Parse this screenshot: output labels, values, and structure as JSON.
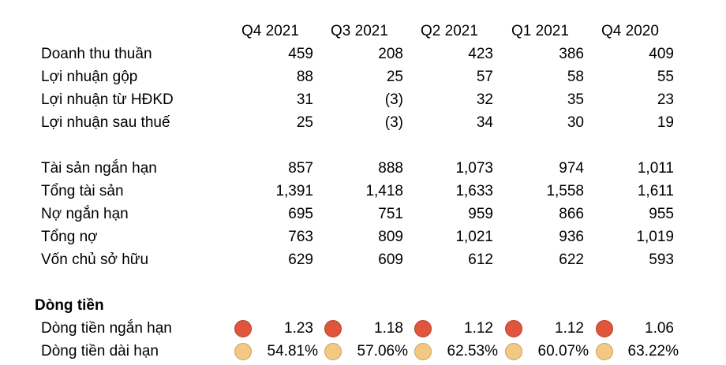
{
  "columns": [
    "Q4 2021",
    "Q3 2021",
    "Q2 2021",
    "Q1 2021",
    "Q4 2020"
  ],
  "income": [
    {
      "label": "Doanh thu thuần",
      "values": [
        "459",
        "208",
        "423",
        "386",
        "409"
      ]
    },
    {
      "label": "Lợi nhuận gộp",
      "values": [
        "88",
        "25",
        "57",
        "58",
        "55"
      ]
    },
    {
      "label": "Lợi nhuận từ HĐKD",
      "values": [
        "31",
        "(3)",
        "32",
        "35",
        "23"
      ]
    },
    {
      "label": "Lợi nhuận sau thuế",
      "values": [
        "25",
        "(3)",
        "34",
        "30",
        "19"
      ]
    }
  ],
  "balance": [
    {
      "label": "Tài sản ngắn hạn",
      "values": [
        "857",
        "888",
        "1,073",
        "974",
        "1,011"
      ]
    },
    {
      "label": "Tổng tài sản",
      "values": [
        "1,391",
        "1,418",
        "1,633",
        "1,558",
        "1,611"
      ]
    },
    {
      "label": "Nợ ngắn hạn",
      "values": [
        "695",
        "751",
        "959",
        "866",
        "955"
      ]
    },
    {
      "label": "Tổng nợ",
      "values": [
        "763",
        "809",
        "1,021",
        "936",
        "1,019"
      ]
    },
    {
      "label": "Vốn chủ sở hữu",
      "values": [
        "629",
        "609",
        "612",
        "622",
        "593"
      ]
    }
  ],
  "cashflow": {
    "title": "Dòng tiền",
    "rows": [
      {
        "label": "Dòng tiền ngắn hạn",
        "values": [
          "1.23",
          "1.18",
          "1.12",
          "1.12",
          "1.06"
        ],
        "dot_color": "#e0553b",
        "dot_border": "#b8402a"
      },
      {
        "label": "Dòng tiền dài hạn",
        "values": [
          "54.81%",
          "57.06%",
          "62.53%",
          "60.07%",
          "63.22%"
        ],
        "dot_color": "#f2c882",
        "dot_border": "#c9a25e"
      }
    ]
  }
}
